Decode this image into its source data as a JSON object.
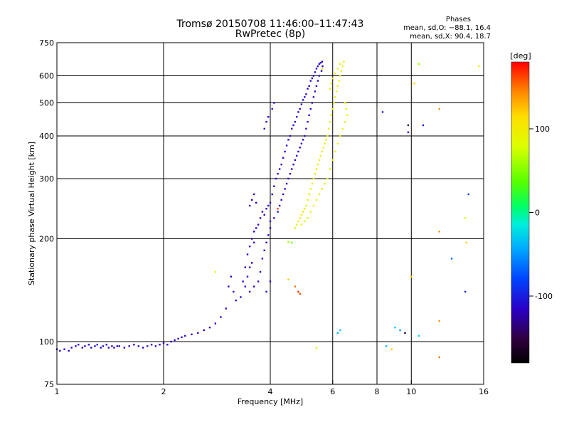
{
  "header": {
    "title_line1": "Tromsø 20150708 11:46:00–11:47:43",
    "title_line2": "RwPretec (8p)",
    "phases_title": "Phases",
    "phases_o": "mean, sd,O: −88.1, 16.4",
    "phases_x": "mean, sd,X:  90.4, 18.7"
  },
  "chart_data": {
    "type": "scatter",
    "xlabel": "Frequency [MHz]",
    "ylabel": "Stationary phase Virtual Height [km]",
    "xscale": "log",
    "yscale": "log",
    "xlim": [
      1,
      16
    ],
    "ylim": [
      75,
      750
    ],
    "xticks": [
      1,
      2,
      4,
      6,
      8,
      10,
      16
    ],
    "yticks": [
      75,
      100,
      200,
      300,
      400,
      500,
      600,
      750
    ],
    "grid_x": [
      2,
      4,
      6,
      8,
      10
    ],
    "grid_y": [
      100,
      200,
      300,
      400,
      500,
      600
    ],
    "colorbar": {
      "label": "[deg]",
      "range": [
        -180,
        180
      ],
      "ticks": [
        100,
        0,
        -100
      ]
    },
    "series": [
      {
        "mode": "O",
        "color_deg": -110,
        "points": [
          [
            1.0,
            95
          ],
          [
            1.02,
            94
          ],
          [
            1.05,
            95
          ],
          [
            1.08,
            94
          ],
          [
            1.1,
            96
          ],
          [
            1.13,
            97
          ],
          [
            1.15,
            98
          ],
          [
            1.18,
            96
          ],
          [
            1.2,
            97
          ],
          [
            1.23,
            98
          ],
          [
            1.25,
            96
          ],
          [
            1.28,
            97
          ],
          [
            1.3,
            98
          ],
          [
            1.33,
            96
          ],
          [
            1.35,
            97
          ],
          [
            1.38,
            98
          ],
          [
            1.4,
            96
          ],
          [
            1.43,
            97
          ],
          [
            1.45,
            96
          ],
          [
            1.48,
            97
          ],
          [
            1.5,
            97
          ],
          [
            1.55,
            96
          ],
          [
            1.6,
            97
          ],
          [
            1.65,
            98
          ],
          [
            1.7,
            97
          ],
          [
            1.75,
            96
          ],
          [
            1.8,
            97
          ],
          [
            1.85,
            98
          ],
          [
            1.9,
            97
          ],
          [
            1.95,
            98
          ],
          [
            2.0,
            99
          ],
          [
            2.05,
            98
          ],
          [
            2.1,
            100
          ],
          [
            2.15,
            101
          ],
          [
            2.2,
            102
          ],
          [
            2.25,
            103
          ],
          [
            2.3,
            104
          ],
          [
            2.4,
            105
          ],
          [
            2.5,
            106
          ],
          [
            2.6,
            108
          ],
          [
            2.7,
            110
          ],
          [
            2.8,
            113
          ],
          [
            2.9,
            118
          ],
          [
            3.0,
            125
          ],
          [
            3.05,
            145
          ],
          [
            3.1,
            155
          ],
          [
            3.15,
            140
          ],
          [
            3.2,
            132
          ],
          [
            3.3,
            135
          ],
          [
            3.35,
            150
          ],
          [
            3.4,
            165
          ],
          [
            3.45,
            180
          ],
          [
            3.5,
            190
          ],
          [
            3.55,
            200
          ],
          [
            3.6,
            210
          ],
          [
            3.65,
            215
          ],
          [
            3.7,
            220
          ],
          [
            3.75,
            230
          ],
          [
            3.8,
            240
          ],
          [
            3.85,
            235
          ],
          [
            3.9,
            245
          ],
          [
            3.95,
            250
          ],
          [
            4.0,
            255
          ],
          [
            3.6,
            195
          ],
          [
            3.55,
            170
          ],
          [
            3.5,
            165
          ],
          [
            3.45,
            155
          ],
          [
            3.4,
            145
          ],
          [
            3.5,
            140
          ],
          [
            3.6,
            145
          ],
          [
            3.7,
            150
          ],
          [
            3.75,
            160
          ],
          [
            3.8,
            175
          ],
          [
            3.85,
            185
          ],
          [
            3.9,
            195
          ],
          [
            3.95,
            205
          ],
          [
            4.0,
            215
          ],
          [
            3.9,
            140
          ],
          [
            4.0,
            150
          ],
          [
            3.55,
            260
          ],
          [
            3.6,
            270
          ],
          [
            3.65,
            255
          ],
          [
            3.5,
            250
          ],
          [
            4.05,
            270
          ],
          [
            4.1,
            285
          ],
          [
            4.15,
            300
          ],
          [
            4.2,
            310
          ],
          [
            4.25,
            320
          ],
          [
            4.3,
            330
          ],
          [
            4.35,
            345
          ],
          [
            4.4,
            360
          ],
          [
            4.45,
            375
          ],
          [
            4.5,
            390
          ],
          [
            4.55,
            400
          ],
          [
            4.6,
            420
          ],
          [
            4.65,
            430
          ],
          [
            4.7,
            440
          ],
          [
            4.75,
            455
          ],
          [
            4.8,
            470
          ],
          [
            4.85,
            480
          ],
          [
            4.9,
            495
          ],
          [
            4.95,
            510
          ],
          [
            5.0,
            520
          ],
          [
            5.05,
            530
          ],
          [
            5.1,
            550
          ],
          [
            5.15,
            560
          ],
          [
            5.2,
            580
          ],
          [
            5.25,
            590
          ],
          [
            5.3,
            600
          ],
          [
            5.35,
            615
          ],
          [
            5.4,
            630
          ],
          [
            5.45,
            640
          ],
          [
            5.5,
            650
          ],
          [
            5.55,
            655
          ],
          [
            5.6,
            660
          ],
          [
            5.62,
            640
          ],
          [
            5.58,
            620
          ],
          [
            5.5,
            600
          ],
          [
            5.45,
            580
          ],
          [
            5.4,
            560
          ],
          [
            5.35,
            540
          ],
          [
            5.3,
            520
          ],
          [
            5.25,
            500
          ],
          [
            5.2,
            480
          ],
          [
            5.15,
            460
          ],
          [
            5.1,
            440
          ],
          [
            5.05,
            420
          ],
          [
            5.0,
            400
          ],
          [
            4.95,
            390
          ],
          [
            4.9,
            380
          ],
          [
            4.85,
            370
          ],
          [
            4.8,
            360
          ],
          [
            4.75,
            350
          ],
          [
            4.7,
            340
          ],
          [
            4.65,
            330
          ],
          [
            4.6,
            320
          ],
          [
            4.55,
            310
          ],
          [
            4.5,
            300
          ],
          [
            4.45,
            290
          ],
          [
            4.4,
            280
          ],
          [
            4.35,
            270
          ],
          [
            4.3,
            260
          ],
          [
            4.25,
            250
          ],
          [
            4.2,
            240
          ],
          [
            4.1,
            230
          ],
          [
            4.0,
            225
          ],
          [
            4.1,
            500
          ],
          [
            4.05,
            480
          ],
          [
            3.95,
            455
          ],
          [
            3.9,
            440
          ],
          [
            3.85,
            420
          ]
        ]
      },
      {
        "mode": "X",
        "color_deg": 95,
        "points": [
          [
            4.7,
            215
          ],
          [
            4.75,
            220
          ],
          [
            4.8,
            225
          ],
          [
            4.85,
            230
          ],
          [
            4.9,
            235
          ],
          [
            4.95,
            240
          ],
          [
            5.0,
            245
          ],
          [
            5.05,
            250
          ],
          [
            5.1,
            260
          ],
          [
            5.15,
            270
          ],
          [
            5.2,
            280
          ],
          [
            5.25,
            290
          ],
          [
            5.3,
            300
          ],
          [
            5.35,
            310
          ],
          [
            5.4,
            320
          ],
          [
            5.45,
            330
          ],
          [
            5.5,
            340
          ],
          [
            5.55,
            350
          ],
          [
            5.6,
            360
          ],
          [
            5.65,
            370
          ],
          [
            5.7,
            380
          ],
          [
            5.75,
            390
          ],
          [
            5.8,
            400
          ],
          [
            5.85,
            420
          ],
          [
            5.9,
            440
          ],
          [
            5.95,
            460
          ],
          [
            6.0,
            480
          ],
          [
            6.05,
            500
          ],
          [
            6.1,
            520
          ],
          [
            6.15,
            540
          ],
          [
            6.2,
            560
          ],
          [
            6.25,
            580
          ],
          [
            6.3,
            600
          ],
          [
            6.35,
            620
          ],
          [
            6.4,
            640
          ],
          [
            6.45,
            660
          ],
          [
            6.3,
            650
          ],
          [
            6.2,
            630
          ],
          [
            6.1,
            610
          ],
          [
            6.0,
            590
          ],
          [
            5.95,
            570
          ],
          [
            5.9,
            550
          ],
          [
            6.5,
            500
          ],
          [
            6.55,
            480
          ],
          [
            6.6,
            460
          ],
          [
            6.5,
            440
          ],
          [
            6.4,
            420
          ],
          [
            6.3,
            400
          ],
          [
            6.2,
            380
          ],
          [
            6.1,
            360
          ],
          [
            6.0,
            340
          ],
          [
            5.9,
            320
          ],
          [
            5.8,
            300
          ],
          [
            5.7,
            290
          ],
          [
            5.6,
            280
          ],
          [
            5.5,
            270
          ],
          [
            5.4,
            260
          ],
          [
            5.3,
            250
          ],
          [
            5.2,
            240
          ],
          [
            5.1,
            230
          ],
          [
            5.0,
            225
          ],
          [
            4.9,
            220
          ]
        ]
      },
      {
        "mode": "noise",
        "points": [
          [
            10.5,
            650,
            60
          ],
          [
            10.2,
            570,
            120
          ],
          [
            12,
            480,
            140
          ],
          [
            9.8,
            430,
            -150
          ],
          [
            9.8,
            410,
            -100
          ],
          [
            10.8,
            430,
            -100
          ],
          [
            8.3,
            470,
            -100
          ],
          [
            14.5,
            270,
            -80
          ],
          [
            14.2,
            230,
            80
          ],
          [
            12,
            210,
            140
          ],
          [
            14.3,
            195,
            120
          ],
          [
            13,
            175,
            -70
          ],
          [
            10,
            155,
            120
          ],
          [
            14.2,
            140,
            -100
          ],
          [
            12,
            115,
            140
          ],
          [
            9.0,
            110,
            -30
          ],
          [
            9.3,
            108,
            -50
          ],
          [
            9.6,
            106,
            -160
          ],
          [
            10.5,
            104,
            -30
          ],
          [
            8.5,
            97,
            -40
          ],
          [
            8.8,
            95,
            120
          ],
          [
            12,
            90,
            150
          ],
          [
            5.4,
            96,
            90
          ],
          [
            6.3,
            108,
            -30
          ],
          [
            6.2,
            106,
            -40
          ],
          [
            4.5,
            152,
            120
          ],
          [
            4.7,
            145,
            150
          ],
          [
            4.8,
            140,
            170
          ],
          [
            4.85,
            138,
            160
          ],
          [
            4.5,
            196,
            60
          ],
          [
            4.2,
            245,
            160
          ],
          [
            4.6,
            195,
            40
          ],
          [
            5.6,
            630,
            110
          ],
          [
            15.5,
            640,
            100
          ],
          [
            2.8,
            160,
            90
          ]
        ]
      }
    ]
  }
}
